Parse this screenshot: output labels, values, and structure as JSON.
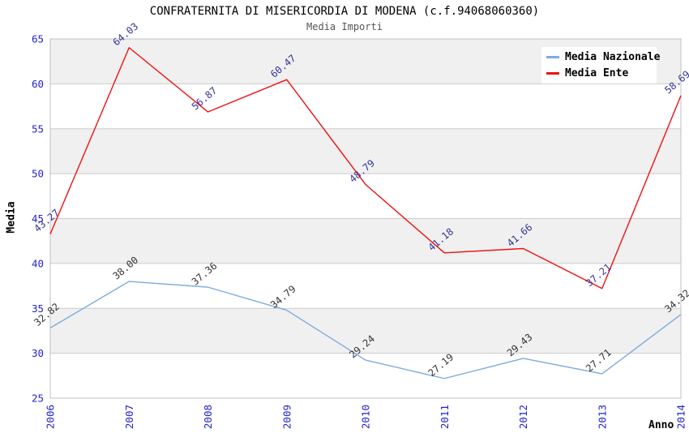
{
  "chart_data": {
    "type": "line",
    "title": "CONFRATERNITA DI MISERICORDIA DI MODENA (c.f.94068060360)",
    "subtitle": "Media Importi",
    "xlabel": "Anno",
    "ylabel": "Media",
    "categories": [
      "2006",
      "2007",
      "2008",
      "2009",
      "2010",
      "2011",
      "2012",
      "2013",
      "2014"
    ],
    "series": [
      {
        "name": "Media Nazionale",
        "color": "#7cacdf",
        "label_color": "#333333",
        "values": [
          32.82,
          38.0,
          37.36,
          34.79,
          29.24,
          27.19,
          29.43,
          27.71,
          34.32
        ]
      },
      {
        "name": "Media Ente",
        "color": "#ee1111",
        "label_color": "#333399",
        "values": [
          43.27,
          64.03,
          56.87,
          60.47,
          48.79,
          41.18,
          41.66,
          37.21,
          58.69
        ]
      }
    ],
    "ylim": [
      25,
      65
    ],
    "ytick_step": 5,
    "yticks": [
      25,
      30,
      35,
      40,
      45,
      50,
      55,
      60,
      65
    ],
    "grid": true,
    "legend_position": "top-right",
    "show_point_labels": true,
    "colors": {
      "band_fill": "#f0f0f0",
      "grid_line": "#cccccc",
      "plot_border": "#c0c0c0",
      "tick_label": "#2222cc",
      "title": "#000000",
      "subtitle": "#555555"
    }
  }
}
